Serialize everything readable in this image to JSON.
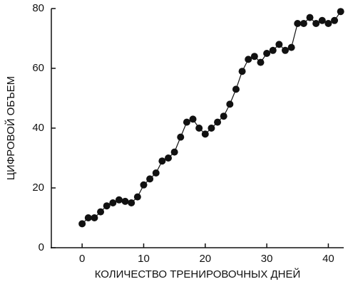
{
  "chart_data": {
    "type": "line",
    "xlabel": "КОЛИЧЕСТВО ТРЕНИРОВОЧНЫХ ДНЕЙ",
    "ylabel": "ЦИФРОВОЙ ОБЪЕМ",
    "x": [
      0,
      1,
      2,
      3,
      4,
      5,
      6,
      7,
      8,
      9,
      10,
      11,
      12,
      13,
      14,
      15,
      16,
      17,
      18,
      19,
      20,
      21,
      22,
      23,
      24,
      25,
      26,
      27,
      28,
      29,
      30,
      31,
      32,
      33,
      34,
      35,
      36,
      37,
      38,
      39,
      40,
      41,
      42
    ],
    "series": [
      {
        "color": "#111111",
        "values": [
          8,
          10,
          10,
          12,
          14,
          15,
          16,
          15.5,
          15,
          17,
          21,
          23,
          25,
          29,
          30,
          32,
          37,
          42,
          43,
          40,
          38,
          40,
          42,
          44,
          48,
          53,
          59,
          63,
          64,
          62,
          65,
          66,
          68,
          66,
          67,
          75,
          75,
          77,
          75,
          76,
          75,
          76,
          79
        ]
      }
    ],
    "xlim": [
      -5,
      42.5
    ],
    "ylim": [
      0,
      80
    ],
    "xticks": [
      0,
      10,
      20,
      30,
      40
    ],
    "yticks": [
      0,
      20,
      40,
      60,
      80
    ]
  }
}
